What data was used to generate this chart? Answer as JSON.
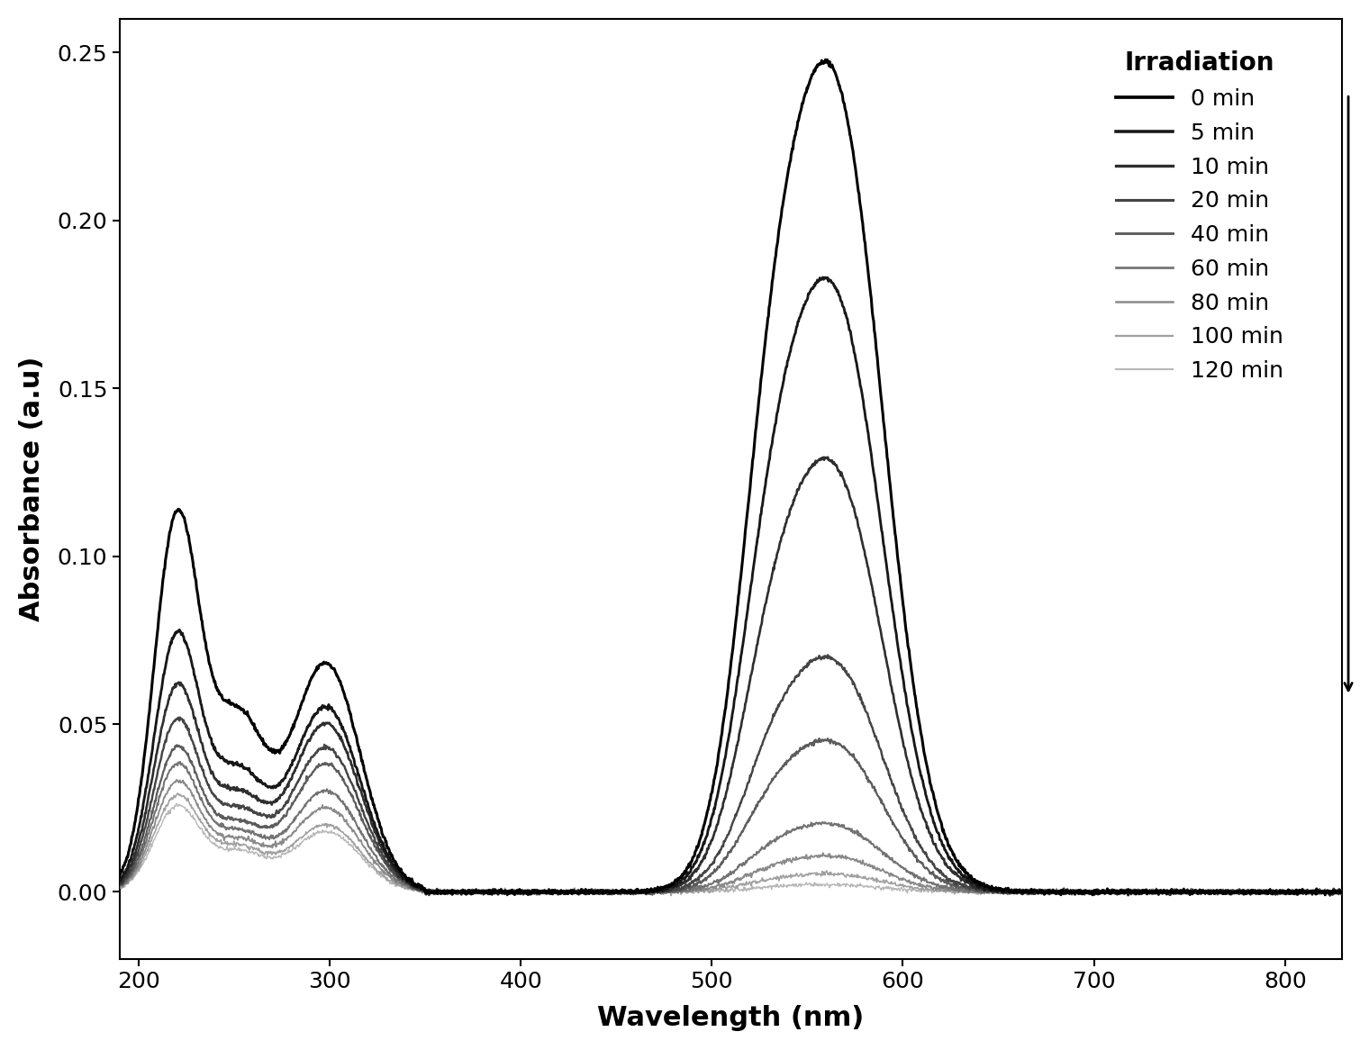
{
  "xlabel": "Wavelength (nm)",
  "ylabel": "Absorbance (a.u)",
  "xlim": [
    190,
    830
  ],
  "ylim": [
    -0.02,
    0.26
  ],
  "xticks": [
    200,
    300,
    400,
    500,
    600,
    700,
    800
  ],
  "yticks": [
    0.0,
    0.05,
    0.1,
    0.15,
    0.2,
    0.25
  ],
  "legend_title": "Irradiation",
  "legend_labels": [
    "0 min",
    "5 min",
    "10 min",
    "20 min",
    "40 min",
    "60 min",
    "80 min",
    "100 min",
    "120 min"
  ],
  "background_color": "#ffffff",
  "xlabel_fontsize": 22,
  "ylabel_fontsize": 22,
  "tick_fontsize": 18,
  "legend_fontsize": 18,
  "series_peaks_main": [
    0.23,
    0.17,
    0.12,
    0.065,
    0.042,
    0.019,
    0.01,
    0.005,
    0.002
  ],
  "series_peaks_uv1": [
    0.11,
    0.075,
    0.06,
    0.05,
    0.042,
    0.037,
    0.032,
    0.028,
    0.025
  ],
  "series_peaks_uv2": [
    0.068,
    0.055,
    0.05,
    0.043,
    0.038,
    0.03,
    0.025,
    0.02,
    0.018
  ]
}
